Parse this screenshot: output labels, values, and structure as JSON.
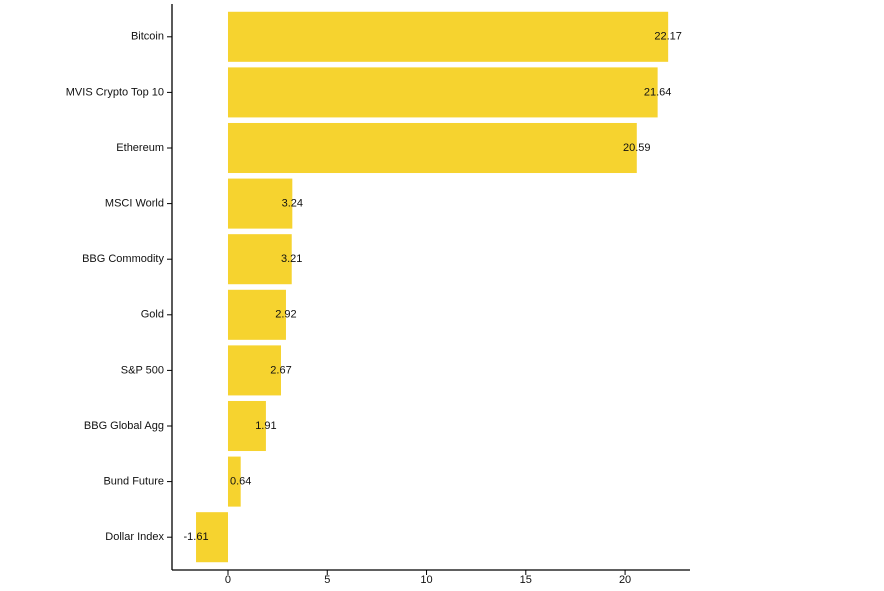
{
  "chart_data": {
    "type": "bar",
    "orientation": "horizontal",
    "categories": [
      "Bitcoin",
      "MVIS Crypto Top 10",
      "Ethereum",
      "MSCI World",
      "BBG Commodity",
      "Gold",
      "S&P 500",
      "BBG Global Agg",
      "Bund Future",
      "Dollar Index"
    ],
    "values": [
      22.17,
      21.64,
      20.59,
      3.24,
      3.21,
      2.92,
      2.67,
      1.91,
      0.64,
      -1.61
    ],
    "color": "#f6d32f",
    "xlim": [
      -2.82,
      23.27
    ],
    "xticks": [
      0,
      5,
      10,
      15,
      20
    ],
    "grid": false
  }
}
